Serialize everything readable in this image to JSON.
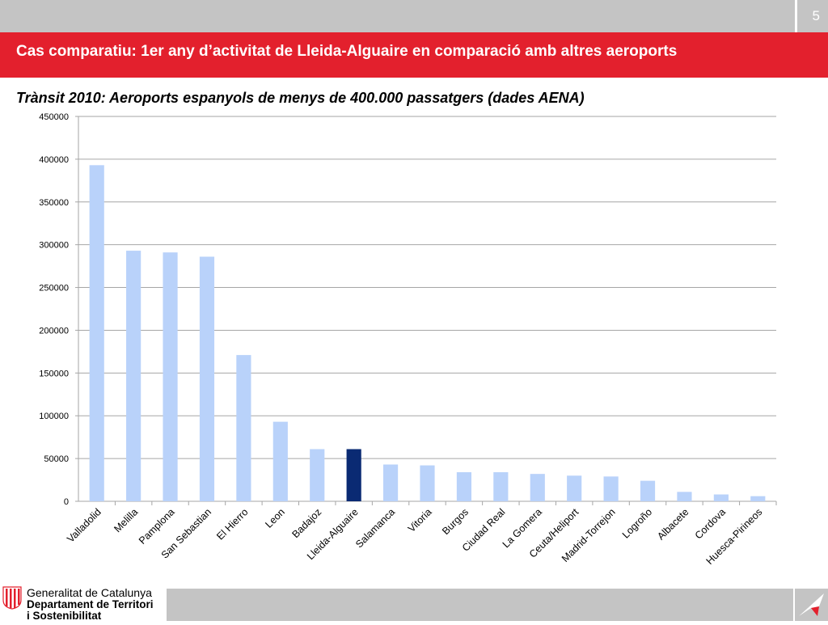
{
  "slide": {
    "page_number": "5",
    "title": "Cas comparatiu: 1er any d’activitat de Lleida-Alguaire en comparació amb altres aeroports",
    "subtitle": "Trànsit 2010: Aeroports espanyols de menys de 400.000 passatgers  (dades AENA)"
  },
  "footer": {
    "org_line1": "Generalitat de Catalunya",
    "org_line2": "Departament de Territori",
    "org_line3": "i Sostenibilitat"
  },
  "colors": {
    "title_bar": "#e3202d",
    "bar_default": "#b9d2fa",
    "bar_highlight": "#0a2a73",
    "gridline": "#a6a6a6"
  },
  "chart_data": {
    "type": "bar",
    "title": "",
    "xlabel": "",
    "ylabel": "",
    "ylim": [
      0,
      450000
    ],
    "yticks": [
      0,
      50000,
      100000,
      150000,
      200000,
      250000,
      300000,
      350000,
      400000,
      450000
    ],
    "grid": true,
    "highlight_category": "Lleida-Alguaire",
    "categories": [
      "Valladolid",
      "Melilla",
      "Pamplona",
      "San Sebastian",
      "El Hierro",
      "Leon",
      "Badajoz",
      "Lleida-Alguaire",
      "Salamanca",
      "Vitoria",
      "Burgos",
      "Ciudad Real",
      "La Gomera",
      "Ceuta/Heliport",
      "Madrid-Torrejon",
      "Logroño",
      "Albacete",
      "Cordova",
      "Huesca-Pirineos"
    ],
    "values": [
      393000,
      293000,
      291000,
      286000,
      171000,
      93000,
      61000,
      61000,
      43000,
      42000,
      34000,
      34000,
      32000,
      30000,
      29000,
      24000,
      11000,
      8000,
      6000
    ]
  }
}
